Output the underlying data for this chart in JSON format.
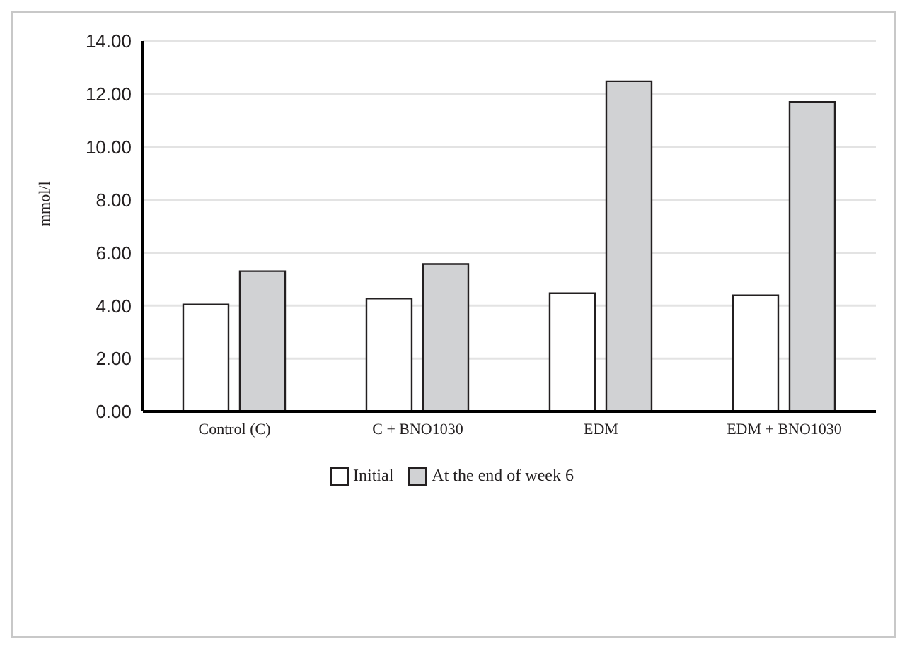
{
  "chart_data": {
    "type": "bar",
    "ylabel": "mmol/l",
    "categories": [
      "Control (C)",
      "C + BNO1030",
      "EDM",
      "EDM + BNO1030"
    ],
    "series": [
      {
        "name": "Initial",
        "color": "#ffffff",
        "values": [
          4.04,
          4.27,
          4.47,
          4.39
        ]
      },
      {
        "name": "At the end of week 6",
        "color": "#d1d2d4",
        "values": [
          5.3,
          5.57,
          12.48,
          11.7
        ]
      }
    ],
    "ylim": [
      0,
      14
    ],
    "yticks": [
      {
        "value": 0,
        "label": "0.00"
      },
      {
        "value": 2,
        "label": "2.00"
      },
      {
        "value": 4,
        "label": "4.00"
      },
      {
        "value": 6,
        "label": "6.00"
      },
      {
        "value": 8,
        "label": "8.00"
      },
      {
        "value": 10,
        "label": "10.00"
      },
      {
        "value": 12,
        "label": "12.00"
      },
      {
        "value": 14,
        "label": "14.00"
      }
    ],
    "grid": "y",
    "legend": "bottom"
  }
}
